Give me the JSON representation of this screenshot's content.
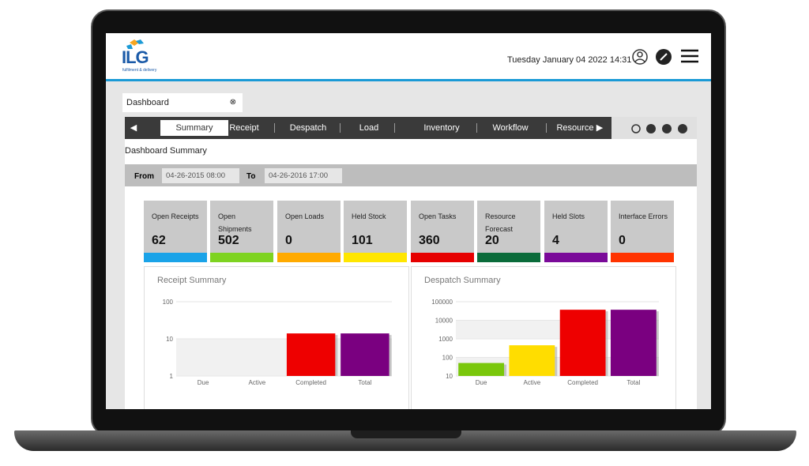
{
  "header": {
    "logo": "ILG",
    "logo_tagline": "fulfilment & delivery",
    "datetime": "Tuesday January 04 2022 14:31"
  },
  "tab": "Dashboard",
  "nav": [
    "Summary",
    "Receipt",
    "Despatch",
    "Load",
    "Inventory",
    "Workflow",
    "Resource"
  ],
  "page_title": "Dashboard Summary",
  "filter": {
    "from_label": "From",
    "from": "04-26-2015 08:00",
    "to_label": "To",
    "to": "04-26-2016 17:00"
  },
  "tiles": [
    {
      "label": "Open Receipts",
      "value": 62,
      "color": "#1aa3e8"
    },
    {
      "label": "Open Shipments",
      "value": 502,
      "color": "#7ed321"
    },
    {
      "label": "Open Loads",
      "value": 0,
      "color": "#ffaa00"
    },
    {
      "label": "Held Stock",
      "value": 101,
      "color": "#ffe600"
    },
    {
      "label": "Open Tasks",
      "value": 360,
      "color": "#e60000"
    },
    {
      "label": "Resource Forecast",
      "value": 20,
      "color": "#0a6b3a"
    },
    {
      "label": "Held Slots",
      "value": 4,
      "color": "#7a0a99"
    },
    {
      "label": "Interface Errors",
      "value": 0,
      "color": "#ff3300"
    }
  ],
  "chart_data": [
    {
      "type": "bar",
      "title": "Receipt Summary",
      "categories": [
        "Due",
        "Active",
        "Completed",
        "Total"
      ],
      "values": [
        null,
        null,
        14,
        14
      ],
      "colors": [
        "#7ac70c",
        "#ffdd00",
        "#ee0000",
        "#7a0080"
      ],
      "ylim": [
        1,
        100
      ],
      "yticks": [
        1,
        10,
        100
      ],
      "log_scale": true
    },
    {
      "type": "bar",
      "title": "Despatch Summary",
      "categories": [
        "Due",
        "Active",
        "Completed",
        "Total"
      ],
      "values": [
        50,
        450,
        37000,
        37000
      ],
      "colors": [
        "#7ac70c",
        "#ffdd00",
        "#ee0000",
        "#7a0080"
      ],
      "ylim": [
        10,
        100000
      ],
      "yticks": [
        10,
        100,
        1000,
        10000,
        100000
      ],
      "log_scale": true
    }
  ]
}
